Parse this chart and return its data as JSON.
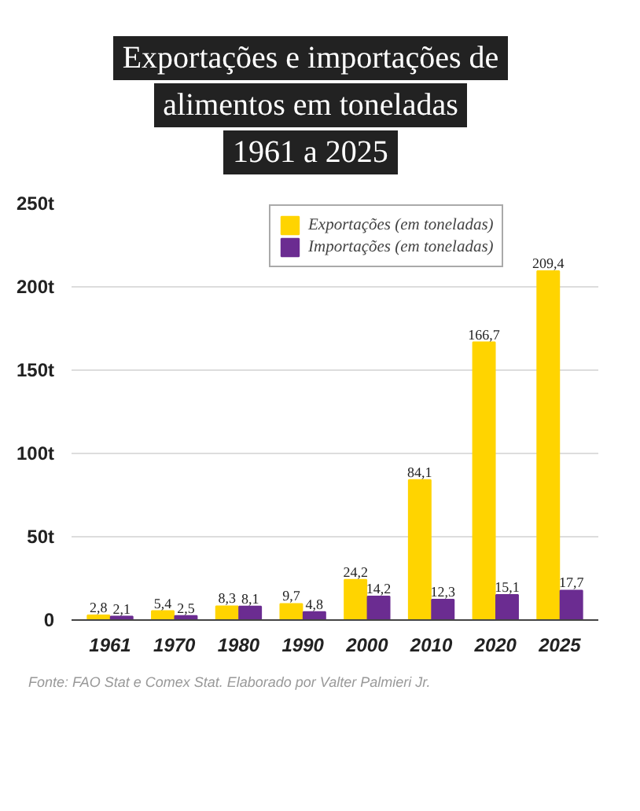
{
  "chart_data": {
    "type": "bar",
    "title": "Exportações e importações de\nalimentos em toneladas\n1961 a 2025",
    "categories": [
      "1961",
      "1970",
      "1980",
      "1990",
      "2000",
      "2010",
      "2020",
      "2025"
    ],
    "series": [
      {
        "name": "Exportações (em toneladas)",
        "color": "#ffd400",
        "values": [
          2.8,
          5.4,
          8.3,
          9.7,
          24.2,
          84.1,
          166.7,
          209.4
        ],
        "value_labels": [
          "2,8",
          "5,4",
          "8,3",
          "9,7",
          "24,2",
          "84,1",
          "166,7",
          "209,4"
        ]
      },
      {
        "name": "Importações (em toneladas)",
        "color": "#6b2c91",
        "values": [
          2.1,
          2.5,
          8.1,
          4.8,
          14.2,
          12.3,
          15.1,
          17.7
        ],
        "value_labels": [
          "2,1",
          "2,5",
          "8,1",
          "4,8",
          "14,2",
          "12,3",
          "15,1",
          "17,7"
        ]
      }
    ],
    "ylim": [
      0,
      250
    ],
    "yticks": [
      0,
      {
        "value": 50,
        "label": "50t"
      },
      {
        "value": 100,
        "label": "100t"
      },
      {
        "value": 150,
        "label": "150t"
      },
      {
        "value": 200,
        "label": "200t"
      },
      {
        "value": 250,
        "label": "250t"
      }
    ],
    "grid": "y",
    "legend": "top right",
    "annotations": [
      "Fonte: FAO Stat e Comex Stat. Elaborado por Valter Palmieri Jr."
    ]
  }
}
